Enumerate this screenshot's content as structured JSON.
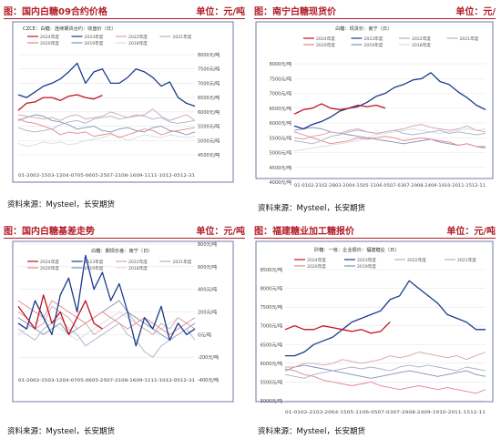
{
  "panels": [
    {
      "header": {
        "title": "图：国内白糖09合约价格",
        "unit": "单位：元/吨"
      },
      "source": "资料来源：Mysteel，长安期货",
      "chart_data": {
        "type": "line",
        "title": "CZCE：白糖：连续期货合约：收盘价（日）",
        "y_axis_side": "right",
        "ylim": [
          4500,
          8000
        ],
        "y_ticks": [
          "8000元/吨",
          "7500元/吨",
          "7000元/吨",
          "6500元/吨",
          "6000元/吨",
          "5500元/吨",
          "5000元/吨",
          "4500元/吨"
        ],
        "x_tick_labels": "01-2002-1503-1204-0705-0605-2507-2108-1609-1111-1012-0512-31",
        "legend": [
          "2024年度",
          "2023年度",
          "2022年度",
          "2021年度",
          "2020年度",
          "2019年度",
          "2018年度"
        ],
        "series": [
          {
            "name": "2024年度",
            "color": "#c0121f",
            "values": [
              6050,
              6300,
              6350,
              6500,
              6500,
              6400,
              6550,
              6600,
              6500,
              6450,
              6580
            ]
          },
          {
            "name": "2023年度",
            "color": "#1a3a8f",
            "values": [
              6600,
              6500,
              6700,
              6900,
              7000,
              7150,
              7400,
              7700,
              7000,
              7400,
              7500,
              7000,
              7000,
              7200,
              7500,
              7400,
              7200,
              6900,
              7050,
              6500,
              6300,
              6200
            ]
          },
          {
            "name": "2022年度",
            "color": "#d2a3ae",
            "values": [
              5900,
              5850,
              5800,
              5750,
              5800,
              5700,
              5850,
              5900,
              5750,
              5800,
              5850,
              6000,
              5900,
              5800,
              5850,
              5900,
              6100,
              5850,
              5700,
              5800,
              5900,
              5700
            ]
          },
          {
            "name": "2021年度",
            "color": "#aab3cc",
            "values": [
              5450,
              5350,
              5300,
              5350,
              5400,
              5550,
              5650,
              5700,
              5600,
              5750,
              5800,
              5850,
              5750,
              5800,
              5900,
              5850,
              5750,
              5800,
              5650,
              5600,
              5650,
              5700
            ]
          },
          {
            "name": "2020年度",
            "color": "#e4858c",
            "values": [
              5750,
              5650,
              5600,
              5500,
              5400,
              5200,
              5300,
              5250,
              5300,
              5150,
              5200,
              5250,
              5100,
              5200,
              5300,
              5400,
              5350,
              5200,
              5300,
              5350,
              5400,
              5450
            ]
          },
          {
            "name": "2019年度",
            "color": "#8390b0",
            "values": [
              5700,
              5800,
              5900,
              5850,
              5700,
              5650,
              5550,
              5400,
              5450,
              5500,
              5350,
              5300,
              5400,
              5450,
              5350,
              5300,
              5450,
              5500,
              5350,
              5300,
              5200,
              5300
            ]
          },
          {
            "name": "2018年度",
            "color": "#d9dbe2",
            "values": [
              4900,
              4800,
              4850,
              4950,
              4900,
              4950,
              4850,
              4900,
              5000,
              5050,
              5100,
              5200,
              5150,
              5000,
              5100,
              5200,
              5150,
              5100,
              5200,
              5150,
              5100,
              5150
            ]
          }
        ]
      }
    },
    {
      "header": {
        "title": "图：南宁白糖现货价",
        "unit": "单位：元/"
      },
      "source": "资料来源：Mysteel，长安期货",
      "chart_data": {
        "type": "line",
        "title": "白糖：现货价：南宁（日）",
        "y_axis_side": "left",
        "ylim": [
          4000,
          8000
        ],
        "y_ticks": [
          "8000元/吨",
          "7500元/吨",
          "7000元/吨",
          "6500元/吨",
          "6000元/吨",
          "5500元/吨",
          "5000元/吨",
          "4500元/吨",
          "4000元/吨"
        ],
        "x_tick_labels": "01-0102-2102-2803-2004-1505-1106-0507-0307-2908-2409-1910-2011-1512-11",
        "legend": [
          "2024年度",
          "2023年度",
          "2022年度",
          "2021年度",
          "2020年度",
          "2019年度",
          "2018年度"
        ],
        "series": [
          {
            "name": "2024年度",
            "color": "#c0121f",
            "values": [
              6300,
              6450,
              6500,
              6650,
              6500,
              6450,
              6500,
              6600,
              6550,
              6600,
              6500
            ]
          },
          {
            "name": "2023年度",
            "color": "#1a3a8f",
            "values": [
              5900,
              5800,
              5950,
              6050,
              6200,
              6400,
              6500,
              6550,
              6700,
              6900,
              7000,
              7200,
              7300,
              7450,
              7500,
              7700,
              7400,
              7300,
              7050,
              6850,
              6600,
              6450
            ]
          },
          {
            "name": "2022年度",
            "color": "#d2a3ae",
            "values": [
              5500,
              5450,
              5550,
              5600,
              5700,
              5650,
              5750,
              5800,
              5700,
              5650,
              5700,
              5750,
              5800,
              5900,
              5950,
              5850,
              5800,
              5750,
              5800,
              5900,
              5750,
              5700
            ]
          },
          {
            "name": "2021年度",
            "color": "#aab3cc",
            "values": [
              5400,
              5350,
              5300,
              5400,
              5550,
              5600,
              5700,
              5750,
              5700,
              5650,
              5700,
              5750,
              5650,
              5600,
              5650,
              5700,
              5750,
              5650,
              5700,
              5650,
              5600,
              5650
            ]
          },
          {
            "name": "2020年度",
            "color": "#e4858c",
            "values": [
              5700,
              5600,
              5500,
              5400,
              5300,
              5350,
              5400,
              5500,
              5450,
              5500,
              5550,
              5500,
              5400,
              5450,
              5500,
              5450,
              5400,
              5350,
              5250,
              5300,
              5200,
              5150
            ]
          },
          {
            "name": "2019年度",
            "color": "#8390b0",
            "values": [
              5750,
              5800,
              5850,
              5800,
              5700,
              5650,
              5600,
              5550,
              5500,
              5450,
              5400,
              5350,
              5300,
              5350,
              5400,
              5450,
              5350,
              5300,
              5250,
              5300,
              5200,
              5200
            ]
          },
          {
            "name": "2018年度",
            "color": "#d9dbe2",
            "values": [
              5050,
              5100,
              5150,
              5200,
              5250,
              5300,
              5350,
              5400,
              5500,
              5600,
              5650,
              5700,
              5750,
              5800,
              5750,
              5700,
              5650,
              5700,
              5750,
              5800,
              5750,
              5800
            ]
          }
        ]
      }
    },
    {
      "header": {
        "title": "图：国内白糖基差走势",
        "unit": "单位：元/吨"
      },
      "source": "资料来源：Mysteel，长安期货",
      "chart_data": {
        "type": "line",
        "title": "白糖：期现价差：南宁（日）",
        "y_axis_side": "right",
        "ylim": [
          -400,
          800
        ],
        "y_ticks": [
          "800元/吨",
          "600元/吨",
          "400元/吨",
          "200元/吨",
          "0元/吨",
          "-200元/吨",
          "-400元/吨"
        ],
        "x_tick_labels": "01-2002-1503-1204-0705-0605-2507-2108-1609-1111-1012-0512-31",
        "legend": [
          "2024年度",
          "2023年度",
          "2022年度",
          "2021年度",
          "2020年度",
          "2019年度",
          "2018年度"
        ],
        "series": [
          {
            "name": "2024年度",
            "color": "#c0121f",
            "values": [
              250,
              150,
              50,
              350,
              100,
              200,
              0,
              150,
              300,
              100,
              50
            ]
          },
          {
            "name": "2023年度",
            "color": "#1a3a8f",
            "values": [
              100,
              50,
              300,
              150,
              0,
              350,
              500,
              200,
              700,
              400,
              550,
              300,
              450,
              200,
              -100,
              150,
              50,
              250,
              -50,
              100,
              0,
              50
            ]
          },
          {
            "name": "2022年度",
            "color": "#d2a3ae",
            "values": [
              200,
              150,
              50,
              100,
              250,
              200,
              150,
              50,
              100,
              0,
              50,
              100,
              150,
              200,
              100,
              50,
              0,
              100,
              50,
              150,
              100,
              50
            ]
          },
          {
            "name": "2021年度",
            "color": "#aab3cc",
            "values": [
              50,
              0,
              -50,
              50,
              100,
              150,
              50,
              0,
              -100,
              -50,
              0,
              50,
              100,
              0,
              -50,
              -150,
              -200,
              -100,
              -50,
              0,
              50,
              -50
            ]
          },
          {
            "name": "2020年度",
            "color": "#e4858c",
            "values": [
              300,
              250,
              200,
              150,
              300,
              250,
              200,
              150,
              100,
              150,
              200,
              150,
              100,
              50,
              100,
              150,
              100,
              50,
              0,
              50,
              100,
              150
            ]
          },
          {
            "name": "2019年度",
            "color": "#8390b0",
            "values": [
              150,
              100,
              50,
              0,
              50,
              100,
              0,
              50,
              100,
              150,
              200,
              250,
              300,
              200,
              150,
              100,
              50,
              0,
              -50,
              0,
              50,
              100
            ]
          },
          {
            "name": "2018年度",
            "color": "#d9dbe2",
            "values": [
              0,
              50,
              100,
              150,
              100,
              50,
              0,
              -50,
              0,
              50,
              100,
              150,
              200,
              150,
              100,
              50,
              0,
              50,
              100,
              150,
              100,
              50
            ]
          }
        ]
      }
    },
    {
      "header": {
        "title": "图：福建糖业加工糖报价",
        "unit": "单位：元/吨"
      },
      "source": "资料来源：Mysteel，长安期货",
      "chart_data": {
        "type": "line",
        "title": "砂糖：一级：企业报价：福建糖业（日）",
        "y_axis_side": "left",
        "ylim": [
          5000,
          8500
        ],
        "y_ticks": [
          "8500元/吨",
          "8000元/吨",
          "7500元/吨",
          "7000元/吨",
          "6500元/吨",
          "6000元/吨",
          "5500元/吨",
          "5000元/吨"
        ],
        "x_tick_labels": "01-0102-2103-2004-1505-1106-0507-0307-2908-2409-1910-2011-1512-11",
        "legend": [
          "2024年度",
          "2023年度",
          "2022年度",
          "2021年度",
          "2020年度",
          "2019年度"
        ],
        "series": [
          {
            "name": "2024年度",
            "color": "#c0121f",
            "values": [
              6900,
              7000,
              6900,
              6900,
              7000,
              6950,
              6900,
              6850,
              6900,
              6800,
              6850,
              7100
            ]
          },
          {
            "name": "2023年度",
            "color": "#1a3a8f",
            "values": [
              6200,
              6200,
              6300,
              6500,
              6600,
              6700,
              6900,
              7100,
              7200,
              7300,
              7400,
              7700,
              7800,
              8200,
              8000,
              7800,
              7600,
              7300,
              7200,
              7100,
              6900,
              6900
            ]
          },
          {
            "name": "2022年度",
            "color": "#d2a3ae",
            "values": [
              5900,
              5900,
              6000,
              6000,
              5950,
              6000,
              6100,
              6050,
              6000,
              6050,
              6100,
              6200,
              6150,
              6200,
              6300,
              6250,
              6200,
              6150,
              6200,
              6100,
              6200,
              6300
            ]
          },
          {
            "name": "2021年度",
            "color": "#aab3cc",
            "values": [
              5700,
              5650,
              5600,
              5700,
              5750,
              5800,
              5850,
              5900,
              5850,
              5900,
              5850,
              5800,
              5900,
              5950,
              5900,
              5950,
              5900,
              5850,
              5800,
              5900,
              5850,
              5800
            ]
          },
          {
            "name": "2020年度",
            "color": "#e4858c",
            "values": [
              5850,
              5800,
              5700,
              5650,
              5550,
              5500,
              5450,
              5400,
              5450,
              5500,
              5400,
              5350,
              5300,
              5350,
              5400,
              5350,
              5300,
              5350,
              5300,
              5250,
              5200,
              5300
            ]
          },
          {
            "name": "2019年度",
            "color": "#8390b0",
            "values": [
              5800,
              5900,
              5950,
              5900,
              5850,
              5800,
              5750,
              5700,
              5650,
              5600,
              5650,
              5700,
              5750,
              5800,
              5750,
              5700,
              5650,
              5700,
              5750,
              5800,
              5700,
              5650
            ]
          }
        ]
      }
    }
  ]
}
